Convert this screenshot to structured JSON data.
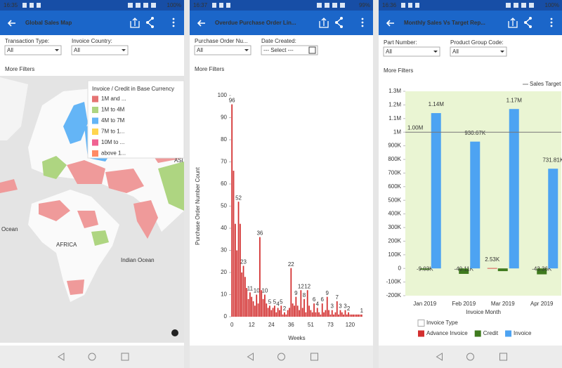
{
  "panels": [
    {
      "status": {
        "time": "16:35",
        "battery": "100%"
      },
      "title": "Global Sales Map",
      "filters": [
        {
          "label": "Transaction Type:",
          "value": "All"
        },
        {
          "label": "Invoice Country:",
          "value": "All"
        }
      ],
      "more_filters": "More Filters"
    },
    {
      "status": {
        "time": "16:37",
        "battery": "99%"
      },
      "title": "Overdue Purchase Order Lin...",
      "filters": [
        {
          "label": "Purchase Order Nu...",
          "value": "All"
        },
        {
          "label": "Date Created:",
          "value": "--- Select ---"
        }
      ],
      "more_filters": "More Filters"
    },
    {
      "status": {
        "time": "16:36",
        "battery": "100%"
      },
      "title": "Monthly Sales Vs Target Rep...",
      "filters": [
        {
          "label": "Part Number:",
          "value": "All"
        },
        {
          "label": "Product Group Code:",
          "value": "All"
        }
      ],
      "more_filters": "More Filters"
    }
  ],
  "map": {
    "legend_title": "Invoice / Credit in Base Currency",
    "legend": [
      {
        "label": "1M and ...",
        "color": "#e57373"
      },
      {
        "label": "1M to 4M",
        "color": "#aed581"
      },
      {
        "label": "4M to 7M",
        "color": "#64b5f6"
      },
      {
        "label": "7M to 1...",
        "color": "#ffd54f"
      },
      {
        "label": "10M to ...",
        "color": "#f06292"
      },
      {
        "label": "above 1...",
        "color": "#ff8a65"
      }
    ],
    "labels": {
      "africa": "AFRICA",
      "indian_ocean": "Indian Ocean",
      "ocean": "Ocean",
      "asia": "ASI"
    }
  },
  "chart_data": [
    {
      "type": "bar",
      "color": "#d32f2f",
      "xlabel": "Weeks",
      "ylabel": "Purchase Order Number Count",
      "categories": [
        "0",
        null,
        null,
        null,
        null,
        null,
        null,
        null,
        null,
        null,
        null,
        null,
        "12",
        null,
        null,
        null,
        null,
        null,
        null,
        null,
        null,
        null,
        null,
        null,
        "24",
        null,
        null,
        null,
        null,
        null,
        null,
        null,
        null,
        null,
        null,
        null,
        "36",
        null,
        null,
        null,
        null,
        null,
        null,
        null,
        null,
        null,
        null,
        null,
        "51",
        null,
        null,
        null,
        null,
        null,
        null,
        null,
        null,
        null,
        null,
        null,
        "73",
        null,
        null,
        null,
        null,
        null,
        null,
        null,
        null,
        null,
        null,
        null,
        "120",
        null,
        null,
        null,
        null,
        null,
        null,
        null
      ],
      "values": [
        96,
        66,
        42,
        30,
        52,
        42,
        20,
        23,
        18,
        13,
        8,
        11,
        9,
        7,
        5,
        10,
        6,
        36,
        12,
        8,
        10,
        6,
        4,
        5,
        3,
        4,
        5,
        2,
        4,
        3,
        5,
        1,
        2,
        1,
        3,
        4,
        22,
        6,
        5,
        9,
        5,
        3,
        12,
        4,
        8,
        2,
        12,
        5,
        3,
        2,
        6,
        2,
        4,
        2,
        1,
        6,
        2,
        3,
        9,
        3,
        1,
        3,
        1,
        2,
        7,
        1,
        3,
        2,
        1,
        3,
        1,
        2,
        1,
        1,
        1,
        1,
        1,
        1,
        1,
        1
      ],
      "ylim": [
        0,
        100
      ],
      "yticks": [
        0,
        10,
        20,
        30,
        40,
        50,
        60,
        70,
        80,
        90,
        100
      ],
      "grid": false
    },
    {
      "type": "bar",
      "xlabel": "Invoice Month",
      "legend_title": "Invoice Type",
      "plot_background": "#eaf5d3",
      "categories": [
        "Jan 2019",
        "Feb 2019",
        "Mar 2019",
        "Apr 2019"
      ],
      "series": [
        {
          "name": "Advance Invoice",
          "color": "#d32f2f",
          "values": [
            null,
            null,
            2530,
            null
          ],
          "value_labels": [
            null,
            null,
            "2.53K",
            null
          ]
        },
        {
          "name": "Credit",
          "color": "#3f7a1e",
          "values": [
            -9030,
            -40110,
            -20000,
            -43360
          ],
          "value_labels": [
            "-9.03K",
            "-40.11K",
            null,
            "-43.36K"
          ]
        },
        {
          "name": "Invoice",
          "color": "#4da3f2",
          "values": [
            1140000,
            930670,
            1170000,
            731810
          ],
          "value_labels": [
            "1.14M",
            "930.67K",
            "1.17M",
            "731.81K"
          ]
        }
      ],
      "target": {
        "name": "Sales Target",
        "value": 1000000,
        "label": "1.00M",
        "color": "#777777"
      },
      "ylim": [
        -200000,
        1300000
      ],
      "yticks": [
        {
          "value": -200000,
          "label": "-200K"
        },
        {
          "value": -100000,
          "label": "-100K"
        },
        0,
        {
          "value": 100000,
          "label": "100K"
        },
        {
          "value": 200000,
          "label": "200K"
        },
        {
          "value": 300000,
          "label": "300K"
        },
        {
          "value": 400000,
          "label": "400K"
        },
        {
          "value": 500000,
          "label": "500K"
        },
        {
          "value": 600000,
          "label": "600K"
        },
        {
          "value": 700000,
          "label": "700K"
        },
        {
          "value": 800000,
          "label": "800K"
        },
        {
          "value": 900000,
          "label": "900K"
        },
        {
          "value": 1000000,
          "label": "1M"
        },
        {
          "value": 1100000,
          "label": "1.1M"
        },
        {
          "value": 1200000,
          "label": "1.2M"
        },
        {
          "value": 1300000,
          "label": "1.3M"
        }
      ],
      "grid": false
    }
  ]
}
